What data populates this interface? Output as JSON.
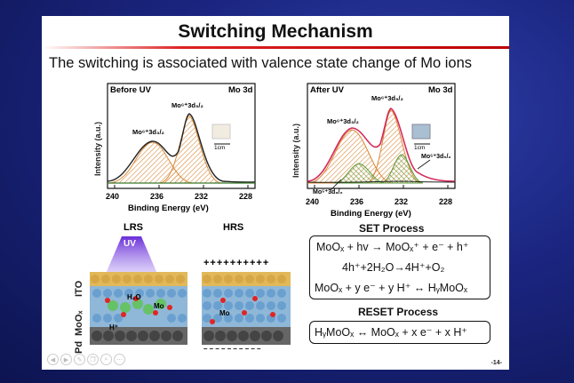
{
  "slide": {
    "title": "Switching Mechanism",
    "subtitle": "The switching is associated with valence state change of Mo ions",
    "page_number": "-14-"
  },
  "left_plot": {
    "condition": "Before UV",
    "element": "Mo 3d",
    "ylabel": "Intensity (a.u.)",
    "xlabel": "Binding Energy (eV)",
    "ticks": [
      "240",
      "236",
      "232",
      "228"
    ],
    "peak_a": "Mo⁶⁺3d₃/₂",
    "peak_b": "Mo⁶⁺3d₅/₂",
    "scale": "1cm"
  },
  "right_plot": {
    "condition": "After UV",
    "element": "Mo 3d",
    "ylabel": "Intensity (a.u.)",
    "xlabel": "Binding Energy (eV)",
    "ticks": [
      "240",
      "236",
      "232",
      "228"
    ],
    "peak_a": "Mo⁶⁺3d₃/₂",
    "peak_b": "Mo⁶⁺3d₅/₂",
    "peak_c": "Mo⁵⁺3d₅/₂",
    "peak_d": "Mo⁵⁺3d₃/₂",
    "scale": "1cm"
  },
  "diagram": {
    "lrs_label": "LRS",
    "hrs_label": "HRS",
    "uv_label": "UV",
    "layer_ito": "ITO",
    "layer_moo": "MoOₓ",
    "layer_pd": "Pd",
    "plus_row": "++++++++++",
    "minus_row": "– – – – – – – – – –",
    "ion_mo": "Mo",
    "ion_h": "H⁺",
    "ion_h2o": "H₂O"
  },
  "set_process": {
    "heading": "SET Process",
    "eq1": "MoOₓ + hv → MoOₓ⁺ + e⁻ + h⁺",
    "eq2": "4h⁺+2H₂O→4H⁺+O₂",
    "eq3": "MoOₓ + y e⁻ + y H⁺ ↔ HᵧMoOₓ"
  },
  "reset_process": {
    "heading": "RESET Process",
    "eq1": "HᵧMoOₓ ↔ MoOₓ + x e⁻ + x H⁺"
  },
  "colors": {
    "background": "#1b2580",
    "title_rule": "#cc1111",
    "fit_orange": "#e09a4a",
    "fit_green": "#4a8a2a",
    "envelope": "#d42a5a",
    "uv_purple": "#7b3fe0"
  },
  "nav_icons": [
    "prev-icon",
    "next-icon",
    "pen-icon",
    "copy-icon",
    "zoom-icon",
    "more-icon"
  ]
}
